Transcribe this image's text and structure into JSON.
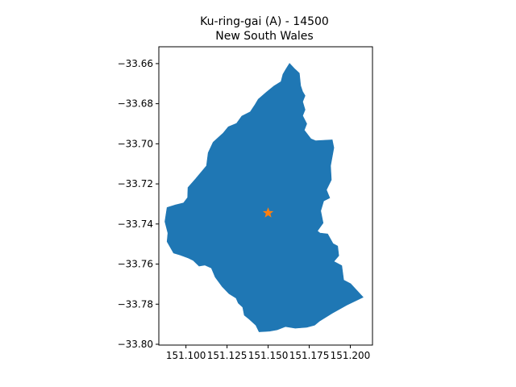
{
  "title_line1": "Ku-ring-gai (A) - 14500",
  "title_line2": "New South Wales",
  "colors": {
    "region_fill": "#1f77b4",
    "marker": "#ff7f0e",
    "axes": "#000000"
  },
  "x_axis": {
    "min": 151.0835,
    "max": 151.2135,
    "ticks": [
      {
        "value": 151.1,
        "label": "151.100"
      },
      {
        "value": 151.125,
        "label": "151.125"
      },
      {
        "value": 151.15,
        "label": "151.150"
      },
      {
        "value": 151.175,
        "label": "151.175"
      },
      {
        "value": 151.2,
        "label": "151.200"
      }
    ]
  },
  "y_axis": {
    "min": -33.8004,
    "max": -33.6516,
    "ticks": [
      {
        "value": -33.66,
        "label": "−33.66"
      },
      {
        "value": -33.68,
        "label": "−33.68"
      },
      {
        "value": -33.7,
        "label": "−33.70"
      },
      {
        "value": -33.72,
        "label": "−33.72"
      },
      {
        "value": -33.74,
        "label": "−33.74"
      },
      {
        "value": -33.76,
        "label": "−33.76"
      },
      {
        "value": -33.78,
        "label": "−33.78"
      },
      {
        "value": -33.8,
        "label": "−33.80"
      }
    ]
  },
  "region_outline": [
    [
      151.163,
      -33.6599
    ],
    [
      151.166,
      -33.6625
    ],
    [
      151.169,
      -33.6648
    ],
    [
      151.1698,
      -33.671
    ],
    [
      151.171,
      -33.674
    ],
    [
      151.1725,
      -33.676
    ],
    [
      151.171,
      -33.679
    ],
    [
      151.1725,
      -33.683
    ],
    [
      151.171,
      -33.686
    ],
    [
      151.1735,
      -33.69
    ],
    [
      151.172,
      -33.6932
    ],
    [
      151.176,
      -33.6975
    ],
    [
      151.179,
      -33.6985
    ],
    [
      151.189,
      -33.698
    ],
    [
      151.19,
      -33.702
    ],
    [
      151.188,
      -33.711
    ],
    [
      151.1885,
      -33.718
    ],
    [
      151.1855,
      -33.723
    ],
    [
      151.1875,
      -33.727
    ],
    [
      151.1838,
      -33.7285
    ],
    [
      151.182,
      -33.7335
    ],
    [
      151.1835,
      -33.7395
    ],
    [
      151.18,
      -33.7435
    ],
    [
      151.1815,
      -33.7445
    ],
    [
      151.1862,
      -33.745
    ],
    [
      151.1895,
      -33.7498
    ],
    [
      151.1923,
      -33.751
    ],
    [
      151.193,
      -33.7558
    ],
    [
      151.19,
      -33.7587
    ],
    [
      151.1948,
      -33.7608
    ],
    [
      151.196,
      -33.768
    ],
    [
      151.2002,
      -33.7698
    ],
    [
      151.2078,
      -33.7765
    ],
    [
      151.1978,
      -33.7805
    ],
    [
      151.189,
      -33.7845
    ],
    [
      151.1812,
      -33.7885
    ],
    [
      151.1783,
      -33.7905
    ],
    [
      151.1735,
      -33.7915
    ],
    [
      151.1665,
      -33.792
    ],
    [
      151.1605,
      -33.7912
    ],
    [
      151.1555,
      -33.7928
    ],
    [
      151.1508,
      -33.7935
    ],
    [
      151.1445,
      -33.7938
    ],
    [
      151.1425,
      -33.7905
    ],
    [
      151.1385,
      -33.7875
    ],
    [
      151.1355,
      -33.7855
    ],
    [
      151.1345,
      -33.7815
    ],
    [
      151.1318,
      -33.7795
    ],
    [
      151.1305,
      -33.777
    ],
    [
      151.1262,
      -33.7748
    ],
    [
      151.122,
      -33.7712
    ],
    [
      151.1178,
      -33.7665
    ],
    [
      151.1155,
      -33.762
    ],
    [
      151.1115,
      -33.7605
    ],
    [
      151.108,
      -33.761
    ],
    [
      151.1045,
      -33.7582
    ],
    [
      151.1015,
      -33.757
    ],
    [
      151.0965,
      -33.7555
    ],
    [
      151.0925,
      -33.7545
    ],
    [
      151.0885,
      -33.7488
    ],
    [
      151.089,
      -33.7445
    ],
    [
      151.0872,
      -33.7388
    ],
    [
      151.0885,
      -33.7318
    ],
    [
      151.0935,
      -33.7305
    ],
    [
      151.0985,
      -33.7295
    ],
    [
      151.101,
      -33.7268
    ],
    [
      151.1012,
      -33.7218
    ],
    [
      151.1058,
      -33.7175
    ],
    [
      151.1125,
      -33.711
    ],
    [
      151.1135,
      -33.7045
    ],
    [
      151.1165,
      -33.6992
    ],
    [
      151.1225,
      -33.6948
    ],
    [
      151.1258,
      -33.6915
    ],
    [
      151.1308,
      -33.6898
    ],
    [
      151.134,
      -33.6862
    ],
    [
      151.1392,
      -33.684
    ],
    [
      151.1418,
      -33.6808
    ],
    [
      151.144,
      -33.6778
    ],
    [
      151.149,
      -33.6742
    ],
    [
      151.1535,
      -33.6712
    ],
    [
      151.1578,
      -33.669
    ],
    [
      151.159,
      -33.6653
    ],
    [
      151.1608,
      -33.6628
    ]
  ],
  "marker": {
    "x": 151.15,
    "y": -33.7345
  }
}
